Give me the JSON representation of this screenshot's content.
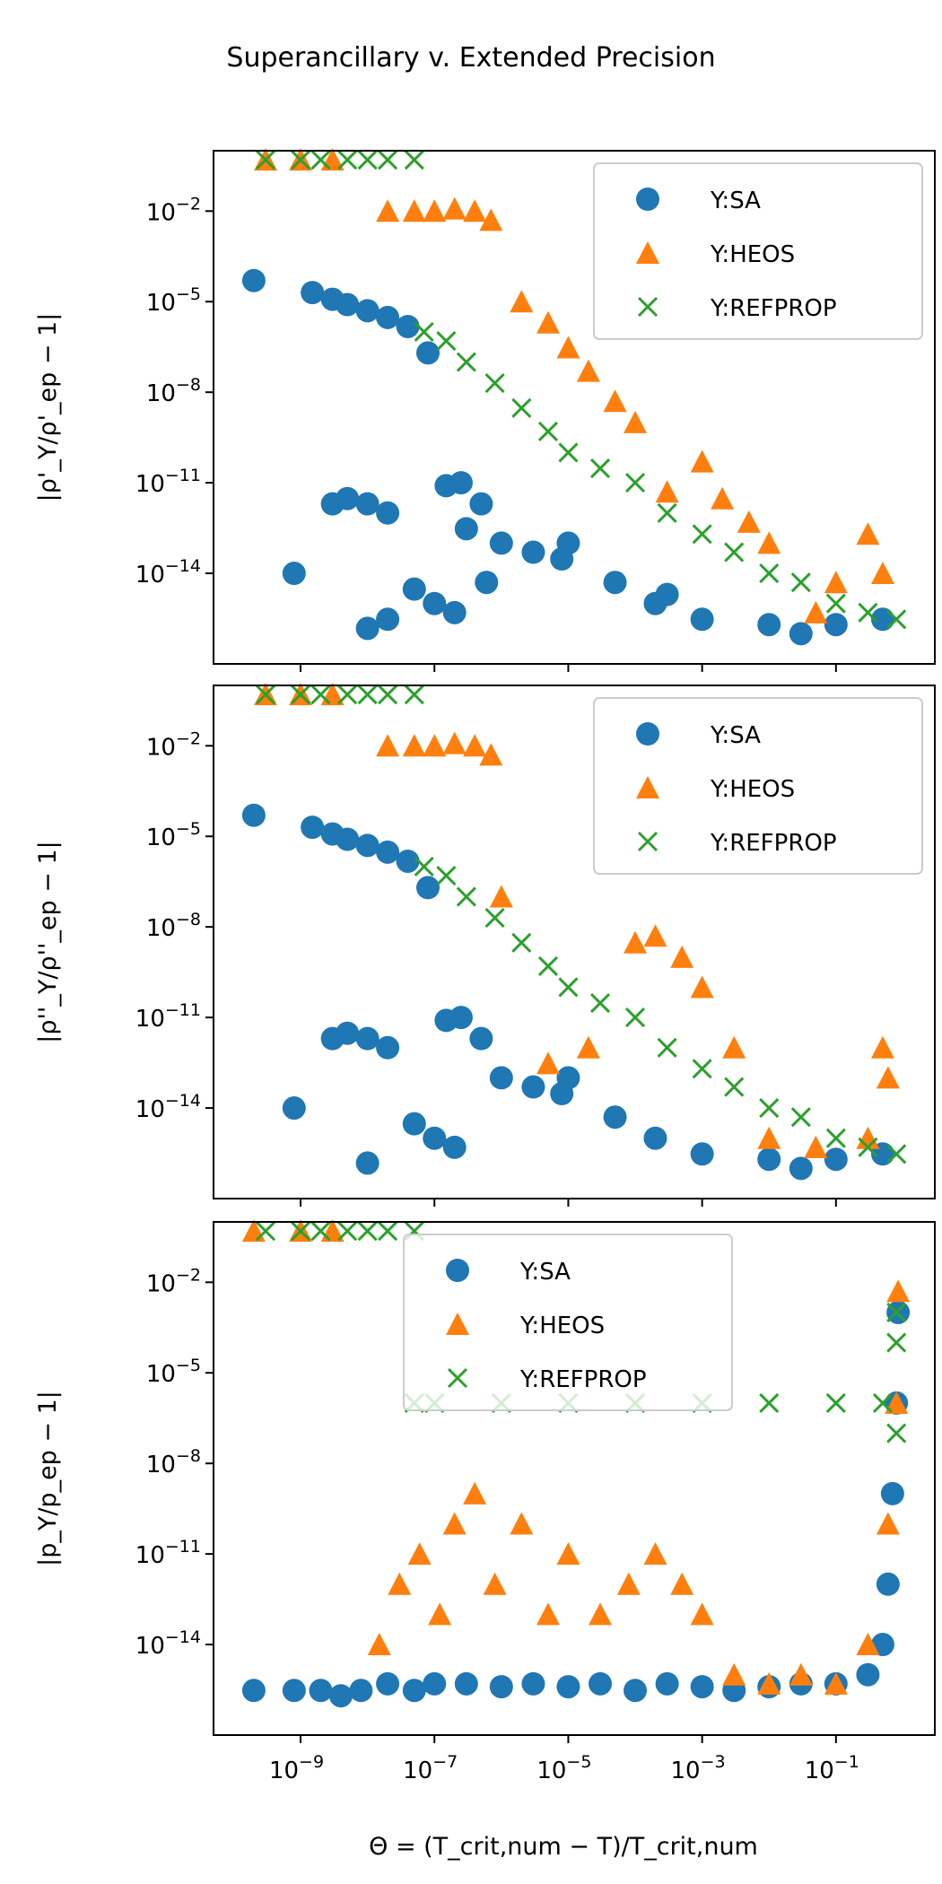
{
  "figure": {
    "title": "Superancillary v. Extended Precision",
    "x_label": "Θ = (T_crit,num − T)/T_crit,num"
  },
  "colors": {
    "SA": "#1f77b4",
    "HEOS": "#ff7f0e",
    "REFPROP": "#2ca02c"
  },
  "chart_data": [
    {
      "type": "scatter",
      "ylabel": "|ρ'_Y/ρ'_ep − 1|",
      "xscale": "log",
      "yscale": "log",
      "xlim": [
        5e-11,
        3
      ],
      "ylim": [
        1e-17,
        1
      ],
      "xticks": [
        "10^-9",
        "10^-7",
        "10^-5",
        "10^-3",
        "10^-1"
      ],
      "yticks": [
        "10^-2",
        "10^-5",
        "10^-8",
        "10^-11",
        "10^-14"
      ],
      "legend": "top-right",
      "series": [
        {
          "name": "Y:SA",
          "marker": "circle",
          "points": [
            [
              2e-10,
              5e-05
            ],
            [
              1.5e-09,
              2e-05
            ],
            [
              3e-09,
              1.2e-05
            ],
            [
              5e-09,
              8e-06
            ],
            [
              1e-08,
              5e-06
            ],
            [
              2e-08,
              3e-06
            ],
            [
              4e-08,
              1.5e-06
            ],
            [
              8e-08,
              2e-07
            ],
            [
              8e-10,
              1e-14
            ],
            [
              3e-09,
              2e-12
            ],
            [
              5e-09,
              3e-12
            ],
            [
              1e-08,
              2e-12
            ],
            [
              2e-08,
              1e-12
            ],
            [
              5e-08,
              3e-15
            ],
            [
              1e-07,
              1e-15
            ],
            [
              2e-07,
              5e-16
            ],
            [
              5e-07,
              2e-12
            ],
            [
              1e-06,
              1e-13
            ],
            [
              3e-06,
              5e-14
            ],
            [
              1e-05,
              1e-13
            ],
            [
              5e-05,
              5e-15
            ],
            [
              0.0002,
              1e-15
            ],
            [
              0.001,
              3e-16
            ],
            [
              0.01,
              2e-16
            ],
            [
              0.03,
              1e-16
            ],
            [
              0.1,
              2e-16
            ],
            [
              0.5,
              3e-16
            ],
            [
              1e-08,
              1.5e-16
            ],
            [
              2e-08,
              3e-16
            ],
            [
              1.5e-07,
              8e-12
            ],
            [
              2.5e-07,
              1e-11
            ],
            [
              3e-07,
              3e-13
            ],
            [
              6e-07,
              5e-15
            ],
            [
              8e-06,
              3e-14
            ],
            [
              0.0003,
              2e-15
            ]
          ]
        },
        {
          "name": "Y:HEOS",
          "marker": "triangle",
          "points": [
            [
              3e-10,
              0.5
            ],
            [
              1e-09,
              0.5
            ],
            [
              3e-09,
              0.5
            ],
            [
              2e-08,
              0.01
            ],
            [
              5e-08,
              0.01
            ],
            [
              1e-07,
              0.01
            ],
            [
              2e-07,
              0.012
            ],
            [
              4e-07,
              0.01
            ],
            [
              7e-07,
              0.005
            ],
            [
              2e-06,
              1e-05
            ],
            [
              5e-06,
              2e-06
            ],
            [
              1e-05,
              3e-07
            ],
            [
              2e-05,
              5e-08
            ],
            [
              5e-05,
              5e-09
            ],
            [
              0.0001,
              1e-09
            ],
            [
              0.0003,
              5e-12
            ],
            [
              0.001,
              5e-11
            ],
            [
              0.002,
              3e-12
            ],
            [
              0.005,
              5e-13
            ],
            [
              0.01,
              1e-13
            ],
            [
              0.05,
              5e-16
            ],
            [
              0.1,
              5e-15
            ],
            [
              0.5,
              1e-14
            ],
            [
              0.3,
              2e-13
            ]
          ]
        },
        {
          "name": "Y:REFPROP",
          "marker": "x",
          "points": [
            [
              3e-10,
              0.5
            ],
            [
              1e-09,
              0.5
            ],
            [
              2e-09,
              0.5
            ],
            [
              5e-09,
              0.5
            ],
            [
              1e-08,
              0.5
            ],
            [
              2e-08,
              0.5
            ],
            [
              5e-08,
              0.5
            ],
            [
              7e-08,
              1e-06
            ],
            [
              1.5e-07,
              5e-07
            ],
            [
              3e-07,
              1e-07
            ],
            [
              8e-07,
              2e-08
            ],
            [
              2e-06,
              3e-09
            ],
            [
              5e-06,
              5e-10
            ],
            [
              1e-05,
              1e-10
            ],
            [
              3e-05,
              3e-11
            ],
            [
              0.0001,
              1e-11
            ],
            [
              0.0003,
              1e-12
            ],
            [
              0.001,
              2e-13
            ],
            [
              0.003,
              5e-14
            ],
            [
              0.01,
              1e-14
            ],
            [
              0.03,
              5e-15
            ],
            [
              0.1,
              1e-15
            ],
            [
              0.3,
              5e-16
            ],
            [
              0.8,
              3e-16
            ]
          ]
        }
      ]
    },
    {
      "type": "scatter",
      "ylabel": "|ρ''_Y/ρ''_ep − 1|",
      "xscale": "log",
      "yscale": "log",
      "xlim": [
        5e-11,
        3
      ],
      "ylim": [
        1e-17,
        1
      ],
      "xticks": [
        "10^-9",
        "10^-7",
        "10^-5",
        "10^-3",
        "10^-1"
      ],
      "yticks": [
        "10^-2",
        "10^-5",
        "10^-8",
        "10^-11",
        "10^-14"
      ],
      "legend": "top-right",
      "series": [
        {
          "name": "Y:SA",
          "marker": "circle",
          "points": [
            [
              2e-10,
              5e-05
            ],
            [
              1.5e-09,
              2e-05
            ],
            [
              3e-09,
              1.2e-05
            ],
            [
              5e-09,
              8e-06
            ],
            [
              1e-08,
              5e-06
            ],
            [
              2e-08,
              3e-06
            ],
            [
              4e-08,
              1.5e-06
            ],
            [
              8e-08,
              2e-07
            ],
            [
              8e-10,
              1e-14
            ],
            [
              3e-09,
              2e-12
            ],
            [
              5e-09,
              3e-12
            ],
            [
              1e-08,
              2e-12
            ],
            [
              2e-08,
              1e-12
            ],
            [
              5e-08,
              3e-15
            ],
            [
              1e-07,
              1e-15
            ],
            [
              2e-07,
              5e-16
            ],
            [
              5e-07,
              2e-12
            ],
            [
              1e-06,
              1e-13
            ],
            [
              3e-06,
              5e-14
            ],
            [
              1e-05,
              1e-13
            ],
            [
              5e-05,
              5e-15
            ],
            [
              0.0002,
              1e-15
            ],
            [
              0.001,
              3e-16
            ],
            [
              0.01,
              2e-16
            ],
            [
              0.03,
              1e-16
            ],
            [
              0.1,
              2e-16
            ],
            [
              0.5,
              3e-16
            ],
            [
              1e-08,
              1.5e-16
            ],
            [
              1.5e-07,
              8e-12
            ],
            [
              2.5e-07,
              1e-11
            ],
            [
              8e-06,
              3e-14
            ]
          ]
        },
        {
          "name": "Y:HEOS",
          "marker": "triangle",
          "points": [
            [
              3e-10,
              0.5
            ],
            [
              1e-09,
              0.5
            ],
            [
              3e-09,
              0.5
            ],
            [
              2e-08,
              0.01
            ],
            [
              5e-08,
              0.01
            ],
            [
              1e-07,
              0.01
            ],
            [
              2e-07,
              0.012
            ],
            [
              4e-07,
              0.01
            ],
            [
              7e-07,
              0.005
            ],
            [
              1e-06,
              1e-07
            ],
            [
              5e-06,
              3e-13
            ],
            [
              2e-05,
              1e-12
            ],
            [
              0.0001,
              3e-09
            ],
            [
              0.0002,
              5e-09
            ],
            [
              0.0005,
              1e-09
            ],
            [
              0.001,
              1e-10
            ],
            [
              0.003,
              1e-12
            ],
            [
              0.01,
              1e-15
            ],
            [
              0.05,
              5e-16
            ],
            [
              0.3,
              1e-15
            ],
            [
              0.5,
              1e-12
            ],
            [
              0.6,
              1e-13
            ]
          ]
        },
        {
          "name": "Y:REFPROP",
          "marker": "x",
          "points": [
            [
              3e-10,
              0.5
            ],
            [
              1e-09,
              0.5
            ],
            [
              2e-09,
              0.5
            ],
            [
              5e-09,
              0.5
            ],
            [
              1e-08,
              0.5
            ],
            [
              2e-08,
              0.5
            ],
            [
              5e-08,
              0.5
            ],
            [
              7e-08,
              1e-06
            ],
            [
              1.5e-07,
              5e-07
            ],
            [
              3e-07,
              1e-07
            ],
            [
              8e-07,
              2e-08
            ],
            [
              2e-06,
              3e-09
            ],
            [
              5e-06,
              5e-10
            ],
            [
              1e-05,
              1e-10
            ],
            [
              3e-05,
              3e-11
            ],
            [
              0.0001,
              1e-11
            ],
            [
              0.0003,
              1e-12
            ],
            [
              0.001,
              2e-13
            ],
            [
              0.003,
              5e-14
            ],
            [
              0.01,
              1e-14
            ],
            [
              0.03,
              5e-15
            ],
            [
              0.1,
              1e-15
            ],
            [
              0.3,
              5e-16
            ],
            [
              0.8,
              3e-16
            ]
          ]
        }
      ]
    },
    {
      "type": "scatter",
      "ylabel": "|p_Y/p_ep − 1|",
      "xscale": "log",
      "yscale": "log",
      "xlim": [
        5e-11,
        3
      ],
      "ylim": [
        1e-17,
        1
      ],
      "xticks": [
        "10^-9",
        "10^-7",
        "10^-5",
        "10^-3",
        "10^-1"
      ],
      "yticks": [
        "10^-2",
        "10^-5",
        "10^-8",
        "10^-11",
        "10^-14"
      ],
      "legend": "top-center",
      "series": [
        {
          "name": "Y:SA",
          "marker": "circle",
          "points": [
            [
              2e-10,
              3e-16
            ],
            [
              8e-10,
              3e-16
            ],
            [
              2e-09,
              3e-16
            ],
            [
              4e-09,
              2e-16
            ],
            [
              8e-09,
              3e-16
            ],
            [
              2e-08,
              5e-16
            ],
            [
              5e-08,
              3e-16
            ],
            [
              1e-07,
              5e-16
            ],
            [
              3e-07,
              5e-16
            ],
            [
              1e-06,
              4e-16
            ],
            [
              3e-06,
              5e-16
            ],
            [
              1e-05,
              4e-16
            ],
            [
              3e-05,
              5e-16
            ],
            [
              0.0001,
              3e-16
            ],
            [
              0.0003,
              5e-16
            ],
            [
              0.001,
              4e-16
            ],
            [
              0.003,
              3e-16
            ],
            [
              0.01,
              4e-16
            ],
            [
              0.03,
              5e-16
            ],
            [
              0.1,
              5e-16
            ],
            [
              0.3,
              1e-15
            ],
            [
              0.5,
              1e-14
            ],
            [
              0.6,
              1e-12
            ],
            [
              0.7,
              1e-09
            ],
            [
              0.8,
              1e-06
            ],
            [
              0.85,
              0.001
            ]
          ]
        },
        {
          "name": "Y:HEOS",
          "marker": "triangle",
          "points": [
            [
              2e-10,
              0.5
            ],
            [
              1e-09,
              0.5
            ],
            [
              3e-09,
              0.5
            ],
            [
              1.5e-08,
              1e-14
            ],
            [
              3e-08,
              1e-12
            ],
            [
              6e-08,
              1e-11
            ],
            [
              1.2e-07,
              1e-13
            ],
            [
              2e-07,
              1e-10
            ],
            [
              4e-07,
              1e-09
            ],
            [
              8e-07,
              1e-12
            ],
            [
              2e-06,
              1e-10
            ],
            [
              5e-06,
              1e-13
            ],
            [
              1e-05,
              1e-11
            ],
            [
              3e-05,
              1e-13
            ],
            [
              8e-05,
              1e-12
            ],
            [
              0.0002,
              1e-11
            ],
            [
              0.0005,
              1e-12
            ],
            [
              0.001,
              1e-13
            ],
            [
              0.003,
              1e-15
            ],
            [
              0.01,
              5e-16
            ],
            [
              0.03,
              1e-15
            ],
            [
              0.1,
              5e-16
            ],
            [
              0.3,
              1e-14
            ],
            [
              0.6,
              1e-10
            ],
            [
              0.8,
              1e-06
            ],
            [
              0.85,
              0.005
            ]
          ]
        },
        {
          "name": "Y:REFPROP",
          "marker": "x",
          "points": [
            [
              3e-10,
              0.5
            ],
            [
              1e-09,
              0.5
            ],
            [
              2e-09,
              0.5
            ],
            [
              5e-09,
              0.5
            ],
            [
              1e-08,
              0.5
            ],
            [
              2e-08,
              0.5
            ],
            [
              5e-08,
              0.5
            ],
            [
              5e-08,
              1e-06
            ],
            [
              1e-07,
              1e-06
            ],
            [
              1e-06,
              1e-06
            ],
            [
              1e-05,
              1e-06
            ],
            [
              0.0001,
              1e-06
            ],
            [
              0.001,
              1e-06
            ],
            [
              0.01,
              1e-06
            ],
            [
              0.1,
              1e-06
            ],
            [
              0.5,
              1e-06
            ],
            [
              0.8,
              1e-07
            ],
            [
              0.8,
              0.0001
            ],
            [
              0.8,
              0.001
            ]
          ]
        }
      ]
    }
  ]
}
